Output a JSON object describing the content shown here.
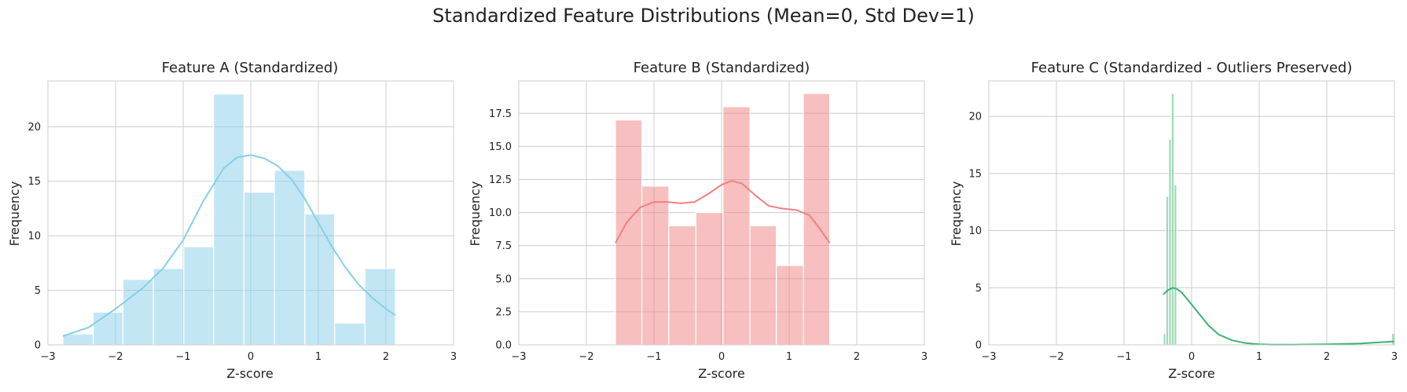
{
  "suptitle": "Standardized Feature Distributions (Mean=0, Std Dev=1)",
  "chart_data": [
    {
      "type": "bar",
      "title": "Feature A (Standardized)",
      "xlabel": "Z-score",
      "ylabel": "Frequency",
      "xlim": [
        -3,
        3
      ],
      "ylim": [
        0,
        24.2
      ],
      "xticks": [
        -3,
        -2,
        -1,
        0,
        1,
        2,
        3
      ],
      "xtick_labels": [
        "−3",
        "−2",
        "−1",
        "0",
        "1",
        "2",
        "3"
      ],
      "yticks": [
        0,
        5,
        10,
        15,
        20
      ],
      "ytick_labels": [
        "0",
        "5",
        "10",
        "15",
        "20"
      ],
      "grid": true,
      "color": "#87ceeb",
      "bins": [
        {
          "x0": -2.78,
          "x1": -2.33,
          "count": 1
        },
        {
          "x0": -2.33,
          "x1": -1.89,
          "count": 3
        },
        {
          "x0": -1.89,
          "x1": -1.44,
          "count": 6
        },
        {
          "x0": -1.44,
          "x1": -0.99,
          "count": 7
        },
        {
          "x0": -0.99,
          "x1": -0.55,
          "count": 9
        },
        {
          "x0": -0.55,
          "x1": -0.1,
          "count": 23
        },
        {
          "x0": -0.1,
          "x1": 0.35,
          "count": 14
        },
        {
          "x0": 0.35,
          "x1": 0.8,
          "count": 16
        },
        {
          "x0": 0.8,
          "x1": 1.24,
          "count": 12
        },
        {
          "x0": 1.24,
          "x1": 1.69,
          "count": 2
        },
        {
          "x0": 1.69,
          "x1": 2.14,
          "count": 7
        }
      ],
      "kde": {
        "x": [
          -2.78,
          -2.4,
          -2.0,
          -1.6,
          -1.3,
          -1.0,
          -0.7,
          -0.4,
          -0.2,
          0.0,
          0.2,
          0.4,
          0.6,
          0.8,
          1.0,
          1.2,
          1.4,
          1.6,
          1.8,
          2.0,
          2.14
        ],
        "y": [
          0.8,
          1.6,
          3.3,
          5.2,
          7.0,
          9.6,
          13.2,
          16.2,
          17.2,
          17.4,
          17.1,
          16.4,
          15.2,
          13.4,
          11.2,
          9.0,
          7.1,
          5.5,
          4.3,
          3.3,
          2.7
        ]
      }
    },
    {
      "type": "bar",
      "title": "Feature B (Standardized)",
      "xlabel": "Z-score",
      "ylabel": "Frequency",
      "xlim": [
        -3,
        3
      ],
      "ylim": [
        0,
        19.95
      ],
      "xticks": [
        -3,
        -2,
        -1,
        0,
        1,
        2,
        3
      ],
      "xtick_labels": [
        "−3",
        "−2",
        "−1",
        "0",
        "1",
        "2",
        "3"
      ],
      "yticks": [
        0,
        2.5,
        5,
        7.5,
        10,
        12.5,
        15,
        17.5
      ],
      "ytick_labels": [
        "0.0",
        "2.5",
        "5.0",
        "7.5",
        "10.0",
        "12.5",
        "15.0",
        "17.5"
      ],
      "grid": true,
      "color": "#f08080",
      "bins": [
        {
          "x0": -1.57,
          "x1": -1.18,
          "count": 17
        },
        {
          "x0": -1.18,
          "x1": -0.78,
          "count": 12
        },
        {
          "x0": -0.78,
          "x1": -0.38,
          "count": 9
        },
        {
          "x0": -0.38,
          "x1": 0.02,
          "count": 10
        },
        {
          "x0": 0.02,
          "x1": 0.42,
          "count": 18
        },
        {
          "x0": 0.42,
          "x1": 0.81,
          "count": 9
        },
        {
          "x0": 0.81,
          "x1": 1.21,
          "count": 6
        },
        {
          "x0": 1.21,
          "x1": 1.6,
          "count": 19
        }
      ],
      "kde": {
        "x": [
          -1.57,
          -1.4,
          -1.2,
          -1.0,
          -0.8,
          -0.6,
          -0.4,
          -0.2,
          0.0,
          0.15,
          0.3,
          0.5,
          0.7,
          0.9,
          1.1,
          1.3,
          1.45,
          1.6
        ],
        "y": [
          7.7,
          9.3,
          10.4,
          10.8,
          10.8,
          10.7,
          10.8,
          11.4,
          12.1,
          12.4,
          12.2,
          11.3,
          10.5,
          10.3,
          10.2,
          9.8,
          8.8,
          7.7
        ]
      }
    },
    {
      "type": "bar",
      "title": "Feature C (Standardized - Outliers Preserved)",
      "xlabel": "Z-score",
      "ylabel": "Frequency",
      "xlim": [
        -3,
        3
      ],
      "ylim": [
        0,
        23.1
      ],
      "xticks": [
        -3,
        -2,
        -1,
        0,
        1,
        2,
        3
      ],
      "xtick_labels": [
        "−3",
        "−2",
        "−1",
        "0",
        "1",
        "2",
        "3"
      ],
      "yticks": [
        0,
        5,
        10,
        15,
        20
      ],
      "yticks_labels_note": "",
      "ytick_labels": [
        "0",
        "5",
        "10",
        "15",
        "20"
      ],
      "grid": true,
      "color": "#3cb371",
      "bins": [
        {
          "x0": -0.42,
          "x1": -0.38,
          "count": 1
        },
        {
          "x0": -0.38,
          "x1": -0.34,
          "count": 13
        },
        {
          "x0": -0.34,
          "x1": -0.3,
          "count": 18
        },
        {
          "x0": -0.3,
          "x1": -0.26,
          "count": 22
        },
        {
          "x0": -0.26,
          "x1": -0.22,
          "count": 14
        },
        {
          "x0": 2.96,
          "x1": 3.0,
          "count": 1
        }
      ],
      "kde": {
        "x": [
          -0.42,
          -0.35,
          -0.28,
          -0.22,
          -0.15,
          -0.05,
          0.1,
          0.25,
          0.4,
          0.6,
          0.8,
          1.0,
          1.2,
          1.5,
          2.0,
          2.5,
          3.0
        ],
        "y": [
          4.4,
          4.8,
          5.0,
          4.9,
          4.6,
          3.9,
          2.8,
          1.7,
          0.9,
          0.4,
          0.15,
          0.05,
          0.02,
          0.02,
          0.05,
          0.12,
          0.3
        ]
      }
    }
  ]
}
